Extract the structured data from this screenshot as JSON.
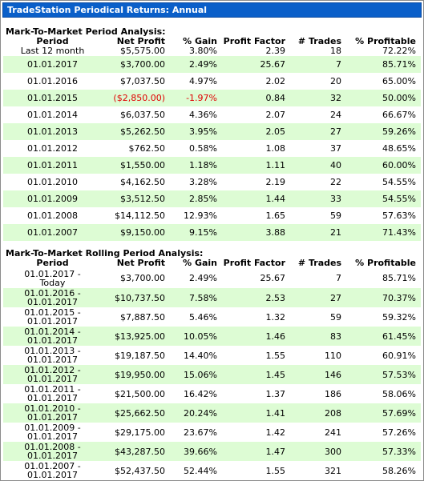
{
  "window": {
    "title": "TradeStation Periodical Returns: Annual"
  },
  "columns": [
    "Period",
    "Net Profit",
    "% Gain",
    "Profit Factor",
    "# Trades",
    "% Profitable"
  ],
  "colors": {
    "title_bar": "#0a5fc9",
    "alt_row": "#ddfcd4",
    "negative": "#e00000"
  },
  "section1": {
    "title": "Mark-To-Market Period Analysis:",
    "rows": [
      {
        "period": "Last 12 month",
        "net_profit": "$5,575.00",
        "gain": "3.80%",
        "profit_factor": "2.39",
        "trades": "18",
        "profitable": "72.22%"
      },
      {
        "period": "01.01.2017",
        "net_profit": "$3,700.00",
        "gain": "2.49%",
        "profit_factor": "25.67",
        "trades": "7",
        "profitable": "85.71%"
      },
      {
        "period": "01.01.2016",
        "net_profit": "$7,037.50",
        "gain": "4.97%",
        "profit_factor": "2.02",
        "trades": "20",
        "profitable": "65.00%"
      },
      {
        "period": "01.01.2015",
        "net_profit": "($2,850.00)",
        "gain": "-1.97%",
        "profit_factor": "0.84",
        "trades": "32",
        "profitable": "50.00%",
        "negative": true
      },
      {
        "period": "01.01.2014",
        "net_profit": "$6,037.50",
        "gain": "4.36%",
        "profit_factor": "2.07",
        "trades": "24",
        "profitable": "66.67%"
      },
      {
        "period": "01.01.2013",
        "net_profit": "$5,262.50",
        "gain": "3.95%",
        "profit_factor": "2.05",
        "trades": "27",
        "profitable": "59.26%"
      },
      {
        "period": "01.01.2012",
        "net_profit": "$762.50",
        "gain": "0.58%",
        "profit_factor": "1.08",
        "trades": "37",
        "profitable": "48.65%"
      },
      {
        "period": "01.01.2011",
        "net_profit": "$1,550.00",
        "gain": "1.18%",
        "profit_factor": "1.11",
        "trades": "40",
        "profitable": "60.00%"
      },
      {
        "period": "01.01.2010",
        "net_profit": "$4,162.50",
        "gain": "3.28%",
        "profit_factor": "2.19",
        "trades": "22",
        "profitable": "54.55%"
      },
      {
        "period": "01.01.2009",
        "net_profit": "$3,512.50",
        "gain": "2.85%",
        "profit_factor": "1.44",
        "trades": "33",
        "profitable": "54.55%"
      },
      {
        "period": "01.01.2008",
        "net_profit": "$14,112.50",
        "gain": "12.93%",
        "profit_factor": "1.65",
        "trades": "59",
        "profitable": "57.63%"
      },
      {
        "period": "01.01.2007",
        "net_profit": "$9,150.00",
        "gain": "9.15%",
        "profit_factor": "3.88",
        "trades": "21",
        "profitable": "71.43%"
      }
    ]
  },
  "section2": {
    "title": "Mark-To-Market Rolling Period Analysis:",
    "rows": [
      {
        "period_a": "01.01.2017 -",
        "period_b": "Today",
        "net_profit": "$3,700.00",
        "gain": "2.49%",
        "profit_factor": "25.67",
        "trades": "7",
        "profitable": "85.71%"
      },
      {
        "period_a": "01.01.2016 -",
        "period_b": "01.01.2017",
        "net_profit": "$10,737.50",
        "gain": "7.58%",
        "profit_factor": "2.53",
        "trades": "27",
        "profitable": "70.37%"
      },
      {
        "period_a": "01.01.2015 -",
        "period_b": "01.01.2017",
        "net_profit": "$7,887.50",
        "gain": "5.46%",
        "profit_factor": "1.32",
        "trades": "59",
        "profitable": "59.32%"
      },
      {
        "period_a": "01.01.2014 -",
        "period_b": "01.01.2017",
        "net_profit": "$13,925.00",
        "gain": "10.05%",
        "profit_factor": "1.46",
        "trades": "83",
        "profitable": "61.45%"
      },
      {
        "period_a": "01.01.2013 -",
        "period_b": "01.01.2017",
        "net_profit": "$19,187.50",
        "gain": "14.40%",
        "profit_factor": "1.55",
        "trades": "110",
        "profitable": "60.91%"
      },
      {
        "period_a": "01.01.2012 -",
        "period_b": "01.01.2017",
        "net_profit": "$19,950.00",
        "gain": "15.06%",
        "profit_factor": "1.45",
        "trades": "146",
        "profitable": "57.53%"
      },
      {
        "period_a": "01.01.2011 -",
        "period_b": "01.01.2017",
        "net_profit": "$21,500.00",
        "gain": "16.42%",
        "profit_factor": "1.37",
        "trades": "186",
        "profitable": "58.06%"
      },
      {
        "period_a": "01.01.2010 -",
        "period_b": "01.01.2017",
        "net_profit": "$25,662.50",
        "gain": "20.24%",
        "profit_factor": "1.41",
        "trades": "208",
        "profitable": "57.69%"
      },
      {
        "period_a": "01.01.2009 -",
        "period_b": "01.01.2017",
        "net_profit": "$29,175.00",
        "gain": "23.67%",
        "profit_factor": "1.42",
        "trades": "241",
        "profitable": "57.26%"
      },
      {
        "period_a": "01.01.2008 -",
        "period_b": "01.01.2017",
        "net_profit": "$43,287.50",
        "gain": "39.66%",
        "profit_factor": "1.47",
        "trades": "300",
        "profitable": "57.33%"
      },
      {
        "period_a": "01.01.2007 -",
        "period_b": "01.01.2017",
        "net_profit": "$52,437.50",
        "gain": "52.44%",
        "profit_factor": "1.55",
        "trades": "321",
        "profitable": "58.26%"
      }
    ]
  }
}
